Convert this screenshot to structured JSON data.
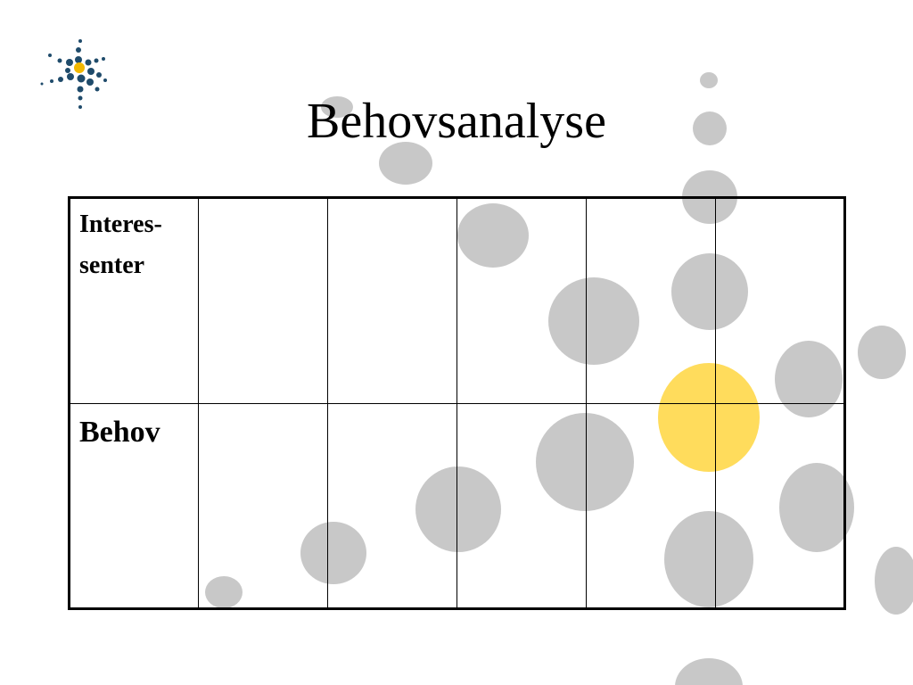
{
  "slide": {
    "title": "Behovsanalyse",
    "logo_icon": "starburst-logo-icon",
    "accent_colors": {
      "logo_dark": "#1f4b6b",
      "logo_gold": "#f2b800",
      "bubble_grey": "#c8c8c8",
      "bubble_yellow": "#ffd84a"
    }
  },
  "table": {
    "rows": [
      {
        "label": "Interes-\nsenter",
        "cells": [
          "",
          "",
          "",
          "",
          ""
        ]
      },
      {
        "label": "Behov",
        "cells": [
          "",
          "",
          "",
          "",
          ""
        ]
      }
    ]
  }
}
